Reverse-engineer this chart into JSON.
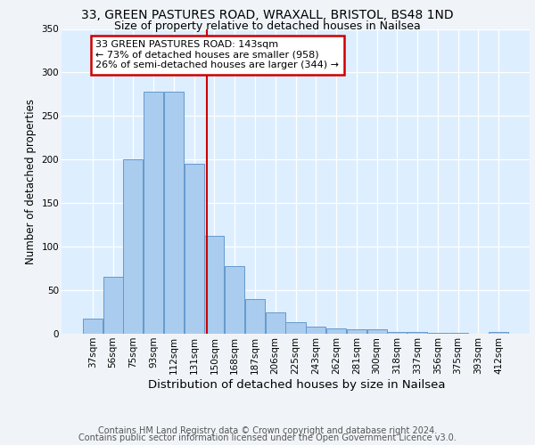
{
  "title": "33, GREEN PASTURES ROAD, WRAXALL, BRISTOL, BS48 1ND",
  "subtitle": "Size of property relative to detached houses in Nailsea",
  "xlabel": "Distribution of detached houses by size in Nailsea",
  "ylabel": "Number of detached properties",
  "categories": [
    "37sqm",
    "56sqm",
    "75sqm",
    "93sqm",
    "112sqm",
    "131sqm",
    "150sqm",
    "168sqm",
    "187sqm",
    "206sqm",
    "225sqm",
    "243sqm",
    "262sqm",
    "281sqm",
    "300sqm",
    "318sqm",
    "337sqm",
    "356sqm",
    "375sqm",
    "393sqm",
    "412sqm"
  ],
  "values": [
    17,
    65,
    200,
    278,
    278,
    195,
    112,
    78,
    40,
    25,
    13,
    8,
    6,
    5,
    5,
    2,
    2,
    1,
    1,
    0,
    2
  ],
  "bar_color": "#aaccee",
  "bar_edge_color": "#6699cc",
  "background_color": "#ddeeff",
  "grid_color": "#ffffff",
  "vline_color": "#cc0000",
  "vline_pos": 5.63,
  "annotation_line1": "33 GREEN PASTURES ROAD: 143sqm",
  "annotation_line2": "← 73% of detached houses are smaller (958)",
  "annotation_line3": "26% of semi-detached houses are larger (344) →",
  "annotation_box_edgecolor": "#cc0000",
  "footer_line1": "Contains HM Land Registry data © Crown copyright and database right 2024.",
  "footer_line2": "Contains public sector information licensed under the Open Government Licence v3.0.",
  "ylim_max": 350,
  "yticks": [
    0,
    50,
    100,
    150,
    200,
    250,
    300,
    350
  ],
  "fig_facecolor": "#f0f4f8",
  "title_fontsize": 10,
  "subtitle_fontsize": 9,
  "ylabel_fontsize": 8.5,
  "tick_fontsize": 7.5,
  "annotation_fontsize": 8,
  "xlabel_fontsize": 9.5,
  "footer_fontsize": 7
}
